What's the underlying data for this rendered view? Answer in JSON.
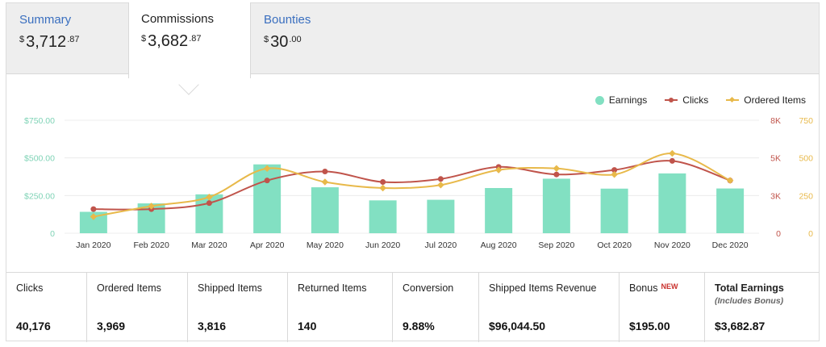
{
  "tabs": [
    {
      "label": "Summary",
      "currency": "$",
      "whole": "3,712",
      "cents": ".87"
    },
    {
      "label": "Commissions",
      "currency": "$",
      "whole": "3,682",
      "cents": ".87"
    },
    {
      "label": "Bounties",
      "currency": "$",
      "whole": "30",
      "cents": ".00"
    }
  ],
  "legend": [
    {
      "label": "Earnings",
      "color": "#82e0c2"
    },
    {
      "label": "Clicks",
      "color": "#c0544b"
    },
    {
      "label": "Ordered Items",
      "color": "#e8b94a"
    }
  ],
  "chart_data": {
    "type": "bar+line",
    "categories": [
      "Jan 2020",
      "Feb 2020",
      "Mar 2020",
      "Apr 2020",
      "May 2020",
      "Jun 2020",
      "Jul 2020",
      "Aug 2020",
      "Sep 2020",
      "Oct 2020",
      "Nov 2020",
      "Dec 2020"
    ],
    "series": [
      {
        "name": "Earnings",
        "type": "bar",
        "axis": "left",
        "color": "#82e0c2",
        "values": [
          142,
          198,
          258,
          457,
          305,
          218,
          222,
          300,
          362,
          296,
          397,
          297
        ]
      },
      {
        "name": "Clicks",
        "type": "line",
        "axis": "right-1",
        "color": "#c0544b",
        "values": [
          1600,
          1600,
          2000,
          3500,
          4100,
          3400,
          3600,
          4400,
          3900,
          4200,
          4800,
          3500
        ]
      },
      {
        "name": "Ordered Items",
        "type": "line",
        "axis": "right-2",
        "color": "#e8b94a",
        "values": [
          110,
          180,
          240,
          430,
          340,
          300,
          320,
          420,
          430,
          390,
          530,
          350
        ]
      }
    ],
    "axes": {
      "left": {
        "min": 0,
        "max": 750,
        "ticks": [
          "0",
          "$250.00",
          "$500.00",
          "$750.00"
        ],
        "color": "#7fd3b6"
      },
      "right1": {
        "min": 0,
        "max": 7500,
        "ticks": [
          "0",
          "3K",
          "5K",
          "8K"
        ],
        "color": "#c0544b"
      },
      "right2": {
        "min": 0,
        "max": 750,
        "ticks": [
          "0",
          "250",
          "500",
          "750"
        ],
        "color": "#e8b94a"
      }
    },
    "grid": true,
    "legend_position": "top-right"
  },
  "stats": [
    {
      "label": "Clicks",
      "value": "40,176"
    },
    {
      "label": "Ordered Items",
      "value": "3,969"
    },
    {
      "label": "Shipped Items",
      "value": "3,816"
    },
    {
      "label": "Returned Items",
      "value": "140"
    },
    {
      "label": "Conversion",
      "value": "9.88%"
    },
    {
      "label": "Shipped Items Revenue",
      "value": "$96,044.50"
    },
    {
      "label": "Bonus",
      "badge": "NEW",
      "value": "$195.00"
    },
    {
      "label": "Total Earnings",
      "sub": "(Includes Bonus)",
      "value": "$3,682.87"
    }
  ]
}
